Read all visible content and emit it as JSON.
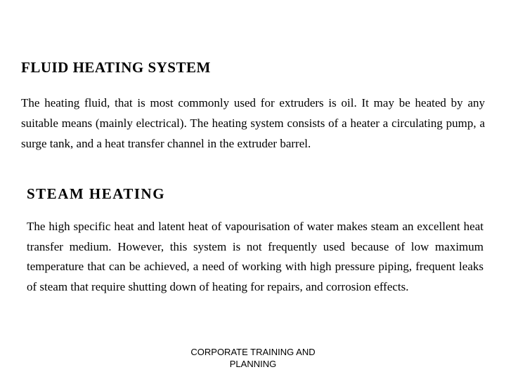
{
  "section1": {
    "heading": "FLUID HEATING SYSTEM",
    "paragraph": "The heating fluid, that is most commonly used for extruders is oil. It may be heated by any suitable means (mainly electrical). The heating system consists of a heater a circulating pump, a surge tank, and a heat transfer channel in the extruder barrel."
  },
  "section2": {
    "heading": "STEAM  HEATING",
    "paragraph": "The high specific heat and latent heat of vapourisation of water makes steam an excellent heat transfer medium. However, this system is not frequently used because of low maximum temperature that can be achieved, a need of working with high pressure piping, frequent leaks of steam that require shutting down of heating for repairs, and corrosion effects."
  },
  "footer": {
    "line1": "CORPORATE TRAINING AND",
    "line2": "PLANNING"
  }
}
